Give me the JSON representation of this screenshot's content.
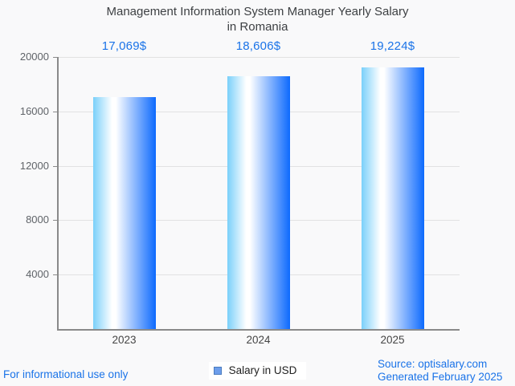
{
  "title": {
    "lines": [
      "Management Information System Manager Yearly Salary",
      "in Romania"
    ]
  },
  "chart_data": {
    "type": "bar",
    "title": "Management Information System Manager Yearly Salary in Romania",
    "categories": [
      "2023",
      "2024",
      "2025"
    ],
    "series": [
      {
        "name": "Salary in USD",
        "values": [
          17069,
          18606,
          19224
        ]
      }
    ],
    "value_labels": [
      "17,069$",
      "18,606$",
      "19,224$"
    ],
    "xlabel": "",
    "ylabel": "",
    "ylim": [
      0,
      20000
    ],
    "yticks": [
      20000,
      16000,
      12000,
      8000,
      4000
    ],
    "grid": true,
    "legend": [
      "Salary in USD"
    ],
    "legend_position": "bottom"
  },
  "footer": {
    "disclaimer": "For informational use only",
    "source": "Source: optisalary.com",
    "generated": "Generated February 2025"
  },
  "colors": {
    "accent_blue": "#1a73e8",
    "bar_gradient_left": "#7ad0fa",
    "bar_gradient_mid": "#ffffff",
    "bar_gradient_right": "#0d6afd",
    "legend_marker_fill": "#6d9eeb",
    "legend_marker_border": "#4a7bbe",
    "title_text": "#3d4043",
    "axis_text": "#5f6368",
    "gridline": "#e2e2e2",
    "axis_line": "#8a8a8a",
    "background": "#f9f9fa"
  }
}
